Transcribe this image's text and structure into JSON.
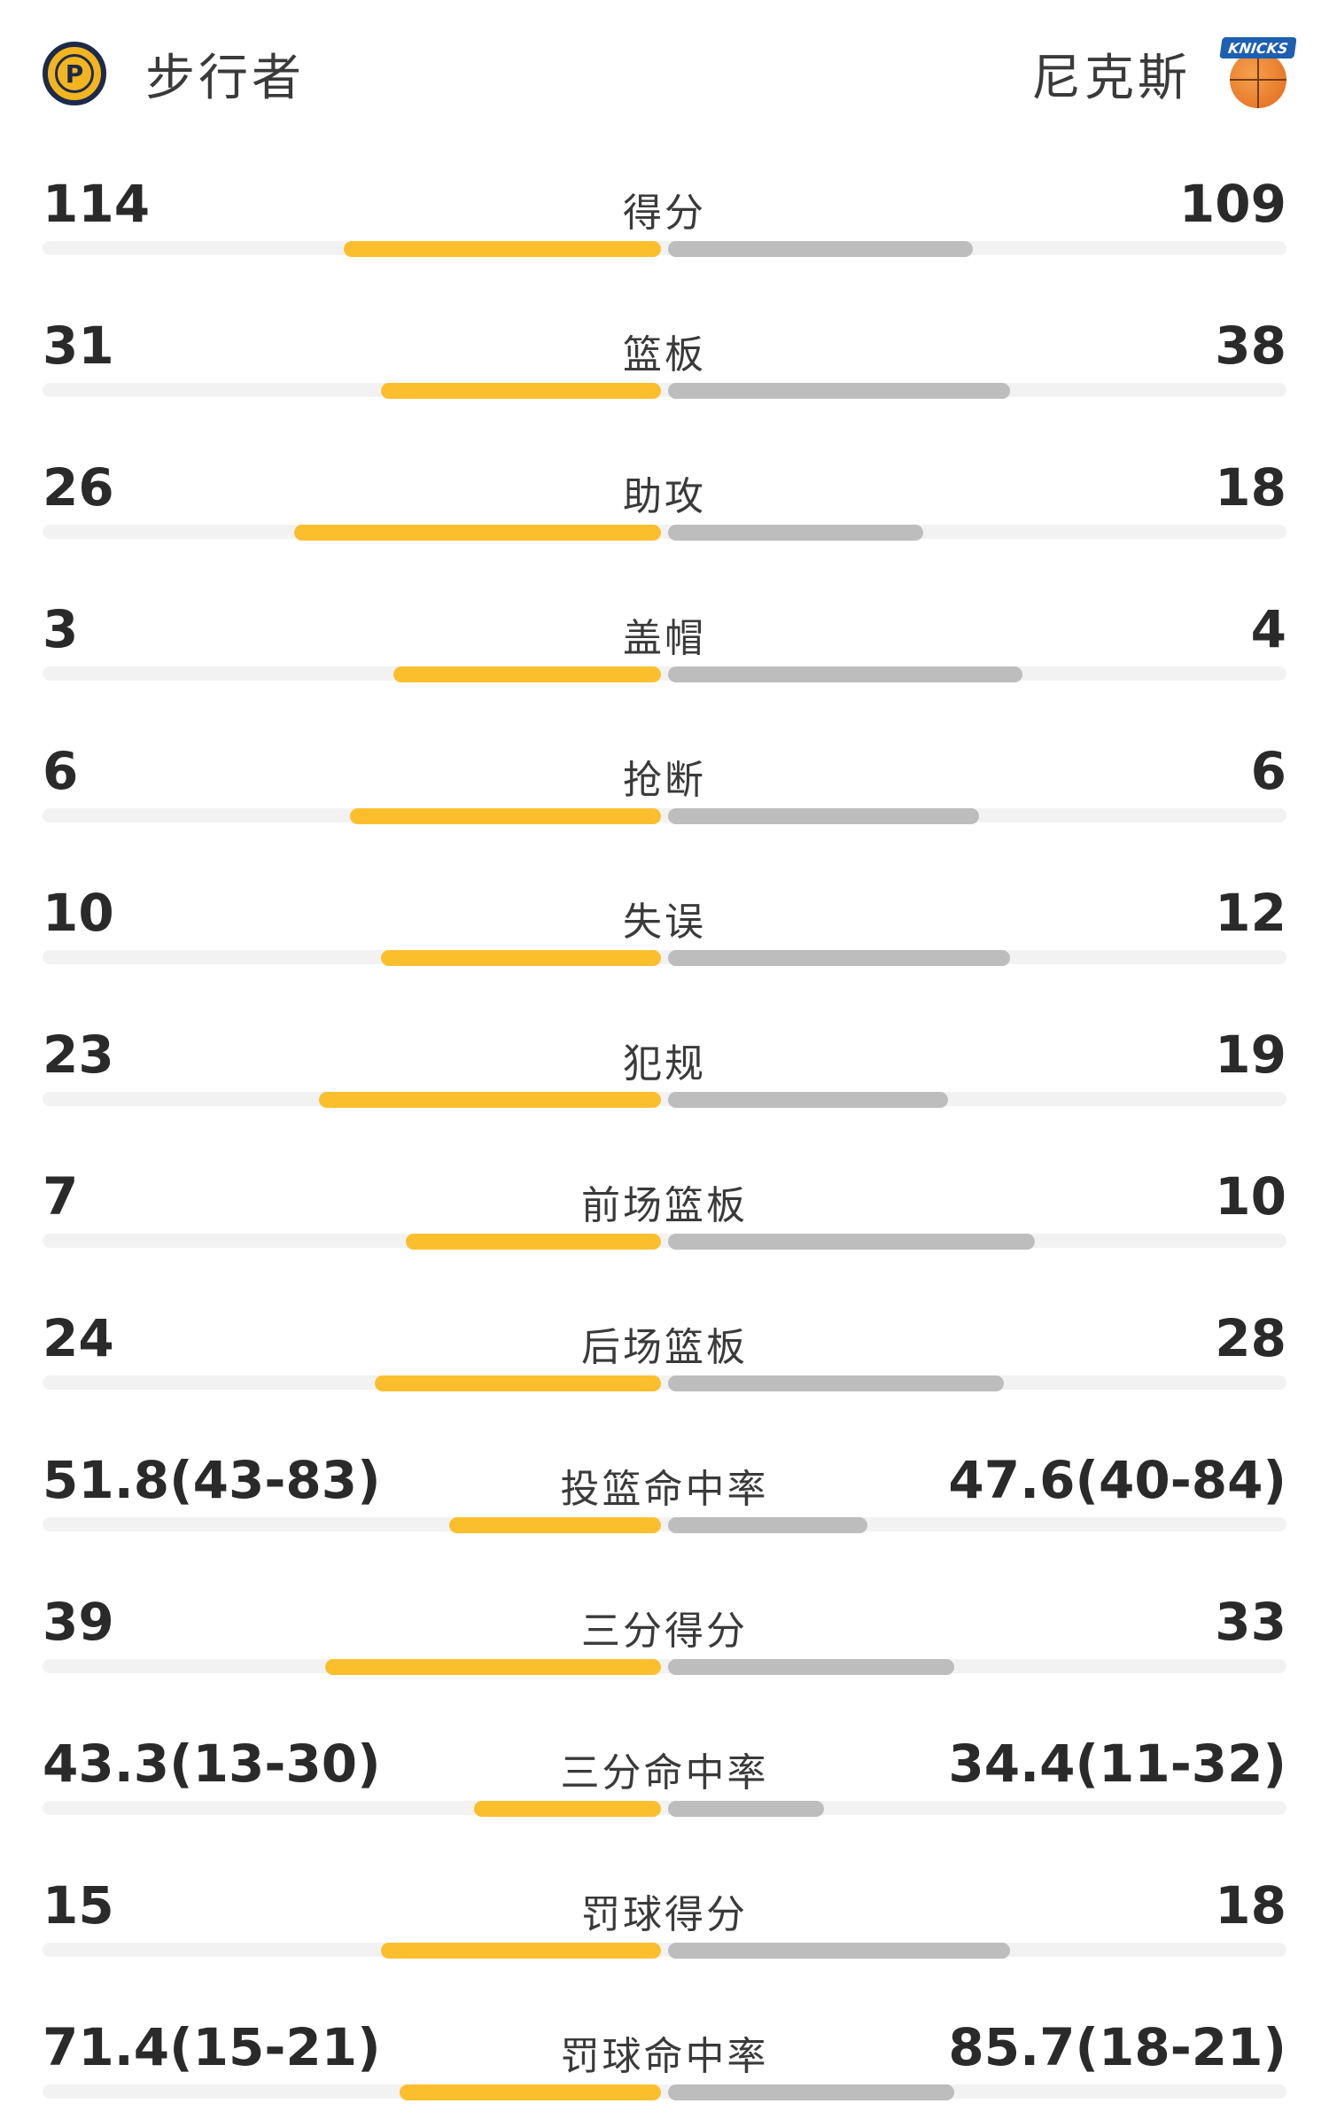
{
  "header": {
    "home_team": "步行者",
    "away_team": "尼克斯",
    "home_logo_icon": "pacers-logo-icon",
    "away_logo_icon": "knicks-logo-icon",
    "away_logo_text": "KNICKS"
  },
  "colors": {
    "home_bar": "#fbbf2e",
    "away_bar": "#bdbdbd",
    "track": "#f2f2f2"
  },
  "stats": [
    {
      "label": "得分",
      "home": "114",
      "away": "109",
      "home_fill": 0.51,
      "away_fill": 0.49
    },
    {
      "label": "篮板",
      "home": "31",
      "away": "38",
      "home_fill": 0.45,
      "away_fill": 0.55
    },
    {
      "label": "助攻",
      "home": "26",
      "away": "18",
      "home_fill": 0.59,
      "away_fill": 0.41
    },
    {
      "label": "盖帽",
      "home": "3",
      "away": "4",
      "home_fill": 0.43,
      "away_fill": 0.57
    },
    {
      "label": "抢断",
      "home": "6",
      "away": "6",
      "home_fill": 0.5,
      "away_fill": 0.5
    },
    {
      "label": "失误",
      "home": "10",
      "away": "12",
      "home_fill": 0.45,
      "away_fill": 0.55
    },
    {
      "label": "犯规",
      "home": "23",
      "away": "19",
      "home_fill": 0.55,
      "away_fill": 0.45
    },
    {
      "label": "前场篮板",
      "home": "7",
      "away": "10",
      "home_fill": 0.41,
      "away_fill": 0.59
    },
    {
      "label": "后场篮板",
      "home": "24",
      "away": "28",
      "home_fill": 0.46,
      "away_fill": 0.54
    },
    {
      "label": "投篮命中率",
      "home": "51.8(43-83)",
      "away": "47.6(40-84)",
      "home_fill": 0.34,
      "away_fill": 0.32
    },
    {
      "label": "三分得分",
      "home": "39",
      "away": "33",
      "home_fill": 0.54,
      "away_fill": 0.46
    },
    {
      "label": "三分命中率",
      "home": "43.3(13-30)",
      "away": "34.4(11-32)",
      "home_fill": 0.3,
      "away_fill": 0.25
    },
    {
      "label": "罚球得分",
      "home": "15",
      "away": "18",
      "home_fill": 0.45,
      "away_fill": 0.55
    },
    {
      "label": "罚球命中率",
      "home": "71.4(15-21)",
      "away": "85.7(18-21)",
      "home_fill": 0.42,
      "away_fill": 0.46
    }
  ]
}
